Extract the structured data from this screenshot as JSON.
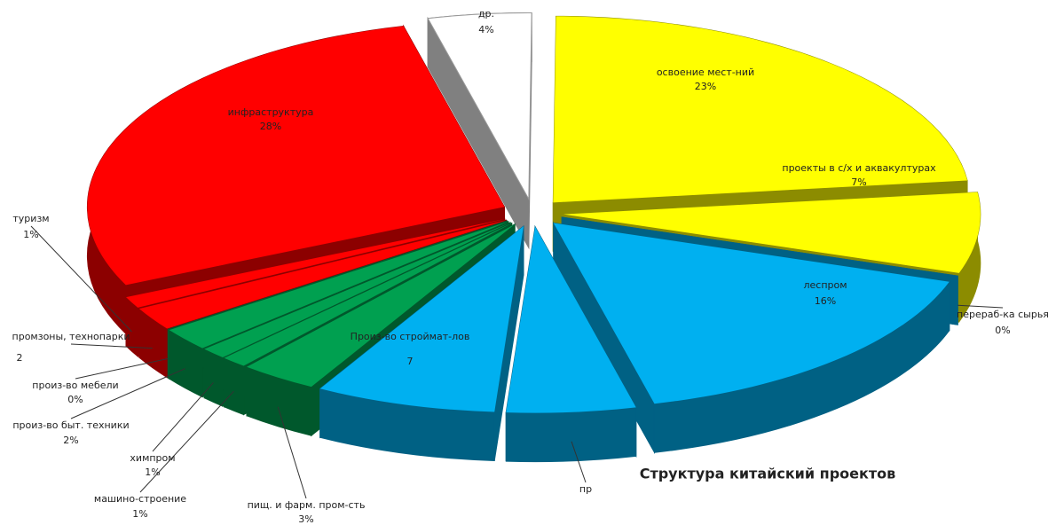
{
  "chart_data": {
    "type": "pie3d",
    "title": "Структура китайский проектов",
    "categories": [
      "др.",
      "освоение мест-ний",
      "проекты в с/х и аквакултурах",
      "перераб-ка сырья",
      "леспром",
      "пр",
      "Произ-во строймат-лов",
      "пищ. и фарм. пром-сть",
      "машино-строение",
      "химпром",
      "произ-во быт. техники",
      "произ-во мебели",
      "промзоны, технопарки",
      "туризм",
      "инфраструктура"
    ],
    "values": [
      4,
      23,
      7,
      0,
      16,
      5,
      7,
      3,
      1,
      1,
      2,
      0,
      2,
      1,
      28
    ],
    "value_labels": [
      "4%",
      "23%",
      "7%",
      "0%",
      "16%",
      null,
      "7",
      "3%",
      "1%",
      "1%",
      "2%",
      "0%",
      "2",
      "1%",
      "28%"
    ],
    "colors": [
      "#ffffff",
      "#ffff00",
      "#ffff00",
      "#00b0f0",
      "#00b0f0",
      "#00b0f0",
      "#00b0f0",
      "#00a050",
      "#00a050",
      "#00a050",
      "#00a050",
      "#00a050",
      "#ff0000",
      "#ff0000",
      "#ff0000"
    ]
  }
}
